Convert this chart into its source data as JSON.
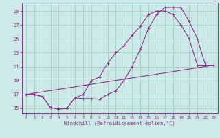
{
  "bg_color": "#cce8e8",
  "line_color": "#883388",
  "xlabel": "Windchill (Refroidissement éolien,°C)",
  "xlim": [
    -0.5,
    23.5
  ],
  "ylim": [
    14.3,
    30.2
  ],
  "xticks": [
    0,
    1,
    2,
    3,
    4,
    5,
    6,
    7,
    8,
    9,
    10,
    11,
    12,
    13,
    14,
    15,
    16,
    17,
    18,
    19,
    20,
    21,
    22,
    23
  ],
  "yticks": [
    15,
    17,
    19,
    21,
    23,
    25,
    27,
    29
  ],
  "series": [
    {
      "x": [
        0,
        1,
        2,
        3,
        4,
        5,
        6,
        7,
        8,
        9,
        10,
        11,
        12,
        13,
        14,
        15,
        16,
        17,
        18,
        19,
        20,
        21,
        22,
        23
      ],
      "y": [
        17.0,
        17.0,
        16.7,
        15.1,
        14.9,
        15.0,
        16.5,
        16.4,
        16.4,
        16.3,
        17.0,
        17.5,
        19.0,
        21.0,
        23.5,
        26.5,
        28.5,
        29.5,
        29.5,
        29.5,
        27.5,
        25.0,
        21.2,
        21.2
      ],
      "marker": true
    },
    {
      "x": [
        0,
        1,
        2,
        3,
        4,
        5,
        6,
        7,
        8,
        9,
        10,
        11,
        12,
        13,
        14,
        15,
        16,
        17,
        18,
        19,
        20,
        21,
        22,
        23
      ],
      "y": [
        17.0,
        17.0,
        16.7,
        15.1,
        14.9,
        15.0,
        16.5,
        17.0,
        19.0,
        19.5,
        21.5,
        23.0,
        24.0,
        25.5,
        26.8,
        28.5,
        29.0,
        29.0,
        28.5,
        27.0,
        25.0,
        21.2,
        21.2,
        21.2
      ],
      "marker": true
    },
    {
      "x": [
        0,
        23
      ],
      "y": [
        17.0,
        21.2
      ],
      "marker": false
    }
  ]
}
